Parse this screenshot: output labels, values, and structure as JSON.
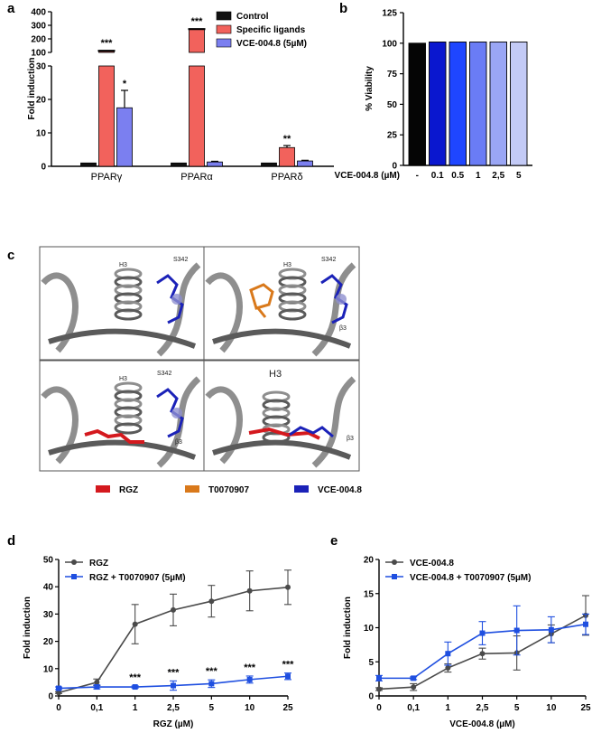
{
  "figure": {
    "panel_labels": [
      "a",
      "b",
      "c",
      "d",
      "e"
    ]
  },
  "chart_data": [
    {
      "panel": "a",
      "type": "bar",
      "ylabel": "Fold induction",
      "categories": [
        "PPARγ",
        "PPARα",
        "PPARδ"
      ],
      "series": [
        {
          "name": "Control",
          "color": "#111111",
          "values": [
            1,
            1,
            1
          ],
          "errors": [
            0,
            0,
            0
          ]
        },
        {
          "name": "Specific ligands",
          "color": "#f2625c",
          "values": [
            112,
            272,
            5.6
          ],
          "errors": [
            2,
            6,
            0.6
          ]
        },
        {
          "name": "VCE-004.8 (5µM)",
          "color": "#7b7ff0",
          "values": [
            17.5,
            1.3,
            1.6
          ],
          "errors": [
            5.2,
            0.2,
            0.2
          ]
        }
      ],
      "significance": [
        {
          "category": "PPARγ",
          "series": "Specific ligands",
          "text": "***"
        },
        {
          "category": "PPARγ",
          "series": "VCE-004.8 (5µM)",
          "text": "*"
        },
        {
          "category": "PPARα",
          "series": "Specific ligands",
          "text": "***"
        },
        {
          "category": "PPARδ",
          "series": "Specific ligands",
          "text": "**"
        }
      ],
      "lower_axis": {
        "range": [
          0,
          30
        ],
        "ticks": [
          "0",
          "10",
          "20",
          "30"
        ]
      },
      "upper_axis": {
        "range": [
          100,
          400
        ],
        "ticks": [
          "100",
          "200",
          "300",
          "400"
        ]
      },
      "legend": "top-right"
    },
    {
      "panel": "b",
      "type": "bar",
      "ylabel": "% Viability",
      "xlabel_prefix": "VCE-004.8 (µM)",
      "categories": [
        "-",
        "0.1",
        "0.5",
        "1",
        "2,5",
        "5"
      ],
      "values": [
        100,
        101,
        101,
        101,
        101,
        101
      ],
      "colors": [
        "#050505",
        "#0a17cf",
        "#1f46ff",
        "#6a7cf5",
        "#9aa6f5",
        "#c3caf6"
      ],
      "ylim": [
        0,
        125
      ],
      "yticks": [
        "0",
        "25",
        "50",
        "75",
        "100",
        "125"
      ]
    },
    {
      "panel": "d",
      "type": "line",
      "xlabel": "RGZ (µM)",
      "ylabel": "Fold induction",
      "categories": [
        "0",
        "0,1",
        "1",
        "2,5",
        "5",
        "10",
        "25"
      ],
      "ylim": [
        0,
        50
      ],
      "yticks": [
        "0",
        "10",
        "20",
        "30",
        "40",
        "50"
      ],
      "series": [
        {
          "name": "RGZ",
          "color": "#4a4a4a",
          "marker": "circle",
          "values": [
            1.2,
            5,
            26.3,
            31.5,
            34.7,
            38.5,
            39.8
          ],
          "errors": [
            0.3,
            1.2,
            7.2,
            5.8,
            5.8,
            7.3,
            6.3
          ]
        },
        {
          "name": "RGZ + T0070907 (5µM)",
          "color": "#1f4fe0",
          "marker": "square",
          "values": [
            2.8,
            3.3,
            3.3,
            3.8,
            4.5,
            6.0,
            7.2
          ],
          "errors": [
            0.5,
            0.7,
            0.4,
            1.7,
            1.4,
            1.3,
            1.2
          ]
        }
      ],
      "significance": [
        "",
        "",
        "***",
        "***",
        "***",
        "***",
        "***"
      ]
    },
    {
      "panel": "e",
      "type": "line",
      "xlabel": "VCE-004.8 (µM)",
      "ylabel": "Fold induction",
      "categories": [
        "0",
        "0,1",
        "1",
        "2,5",
        "5",
        "10",
        "25"
      ],
      "ylim": [
        0,
        20
      ],
      "yticks": [
        "0",
        "5",
        "10",
        "15",
        "20"
      ],
      "series": [
        {
          "name": "VCE-004.8",
          "color": "#4a4a4a",
          "marker": "circle",
          "values": [
            1.0,
            1.3,
            4.1,
            6.2,
            6.3,
            9.1,
            11.8
          ],
          "errors": [
            0.2,
            0.5,
            0.6,
            0.8,
            2.5,
            1.3,
            2.9
          ]
        },
        {
          "name": "VCE-004.8 + T0070907 (5µM)",
          "color": "#1f4fe0",
          "marker": "square",
          "values": [
            2.6,
            2.6,
            6.2,
            9.2,
            9.6,
            9.7,
            10.5
          ],
          "errors": [
            0.4,
            0.2,
            1.7,
            1.7,
            3.6,
            1.9,
            1.5
          ]
        }
      ]
    }
  ],
  "structure_panel": {
    "view_labels": {
      "top_left": [
        "H3",
        "S342"
      ],
      "top_right": [
        "H3",
        "S342",
        "β3"
      ],
      "bottom_left": [
        "H3",
        "S342",
        "β3"
      ],
      "bottom_right": [
        "H3",
        "β3"
      ]
    },
    "legend": [
      {
        "name": "RGZ",
        "color": "#d4191e"
      },
      {
        "name": "T0070907",
        "color": "#d9791b"
      },
      {
        "name": "VCE-004.8",
        "color": "#1b22b8"
      }
    ]
  }
}
